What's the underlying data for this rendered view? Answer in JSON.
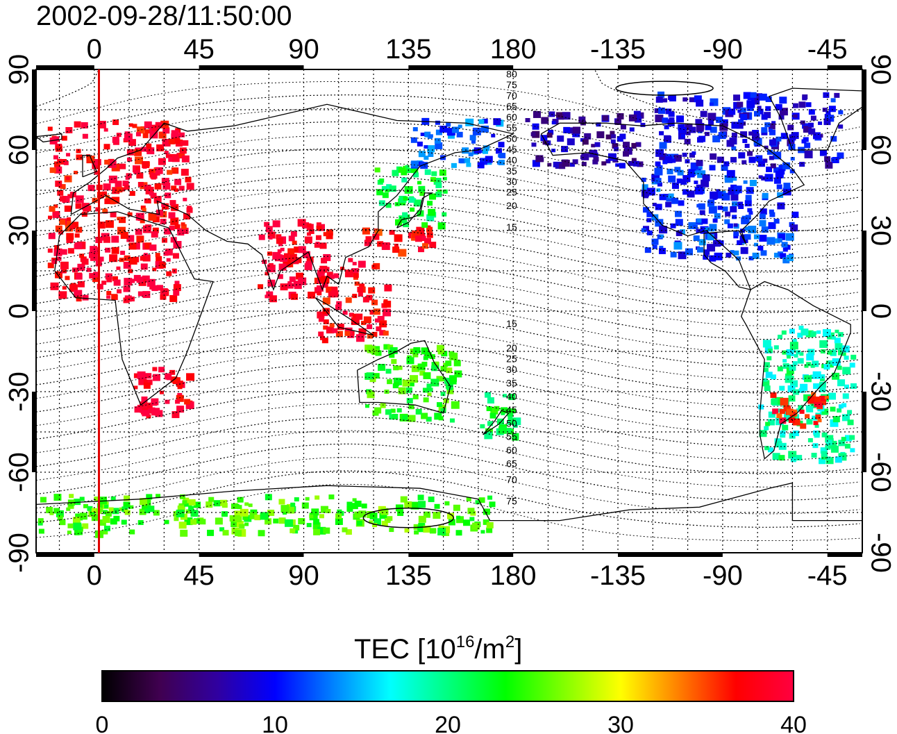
{
  "title": "2002-09-28/11:50:00",
  "map": {
    "lon_ticks_top": [
      "0",
      "45",
      "90",
      "135",
      "180",
      "-135",
      "-90",
      "-45"
    ],
    "lon_ticks_bottom": [
      "0",
      "45",
      "90",
      "135",
      "180",
      "-135",
      "-90",
      "-45"
    ],
    "lat_ticks_left": [
      "90",
      "60",
      "30",
      "0",
      "-30",
      "-60",
      "-90"
    ],
    "lat_ticks_right": [
      "90",
      "60",
      "30",
      "0",
      "-30",
      "-60",
      "-90"
    ],
    "lon_range": [
      -25,
      330
    ],
    "lat_range": [
      -90,
      90
    ],
    "lon_tick_values": [
      0,
      45,
      90,
      135,
      180,
      225,
      270,
      315
    ],
    "lat_tick_values": [
      90,
      60,
      30,
      0,
      -30,
      -60,
      -90
    ],
    "grid": "dotted",
    "terminator_longitude": 2,
    "magnetic_contour_labels_north": [
      "80",
      "75",
      "70",
      "65",
      "60",
      "55",
      "50",
      "45",
      "40",
      "35",
      "30",
      "25",
      "20",
      "15"
    ],
    "magnetic_contour_labels_south": [
      "15",
      "20",
      "25",
      "30",
      "35",
      "40",
      "45",
      "50",
      "55",
      "60",
      "65",
      "70",
      "75"
    ]
  },
  "colorbar": {
    "title_prefix": "TEC  [10",
    "title_sup1": "16",
    "title_mid": "/m",
    "title_sup2": "2",
    "title_suffix": "]",
    "min": 0,
    "max": 40,
    "ticks": [
      "0",
      "10",
      "20",
      "30",
      "40"
    ],
    "colors": [
      "#000000",
      "#400050",
      "#3000a0",
      "#0000ff",
      "#0080ff",
      "#00ffff",
      "#00ff80",
      "#00ff00",
      "#80ff00",
      "#ffff00",
      "#ff8000",
      "#ff0000",
      "#ff0040"
    ]
  },
  "tec_regions": [
    {
      "name": "europe",
      "lon": [
        -20,
        40
      ],
      "lat": [
        30,
        72
      ],
      "tec": 38
    },
    {
      "name": "north-africa",
      "lon": [
        -20,
        35
      ],
      "lat": [
        5,
        30
      ],
      "tec": 39
    },
    {
      "name": "south-africa",
      "lon": [
        15,
        40
      ],
      "lat": [
        -40,
        -20
      ],
      "tec": 39
    },
    {
      "name": "india",
      "lon": [
        70,
        100
      ],
      "lat": [
        5,
        35
      ],
      "tec": 39
    },
    {
      "name": "se-asia",
      "lon": [
        95,
        125
      ],
      "lat": [
        -10,
        20
      ],
      "tec": 38
    },
    {
      "name": "japan-south",
      "lon": [
        115,
        145
      ],
      "lat": [
        22,
        32
      ],
      "tec": 37
    },
    {
      "name": "east-asia",
      "lon": [
        120,
        150
      ],
      "lat": [
        33,
        55
      ],
      "tec": 22
    },
    {
      "name": "siberia",
      "lon": [
        135,
        175
      ],
      "lat": [
        55,
        72
      ],
      "tec": 12
    },
    {
      "name": "alaska",
      "lon": [
        185,
        235
      ],
      "lat": [
        55,
        75
      ],
      "tec": 7
    },
    {
      "name": "north-america",
      "lon": [
        235,
        300
      ],
      "lat": [
        20,
        55
      ],
      "tec": 11
    },
    {
      "name": "canada",
      "lon": [
        240,
        320
      ],
      "lat": [
        55,
        82
      ],
      "tec": 9
    },
    {
      "name": "australia",
      "lon": [
        115,
        155
      ],
      "lat": [
        -40,
        -12
      ],
      "tec": 24
    },
    {
      "name": "new-zealand",
      "lon": [
        165,
        180
      ],
      "lat": [
        -48,
        -30
      ],
      "tec": 22
    },
    {
      "name": "south-america",
      "lon": [
        285,
        325
      ],
      "lat": [
        -55,
        -5
      ],
      "tec": 19
    },
    {
      "name": "argentina",
      "lon": [
        290,
        315
      ],
      "lat": [
        -42,
        -30
      ],
      "tec": 37
    },
    {
      "name": "antarctic-rim",
      "lon": [
        -25,
        170
      ],
      "lat": [
        -82,
        -68
      ],
      "tec": 25
    }
  ]
}
